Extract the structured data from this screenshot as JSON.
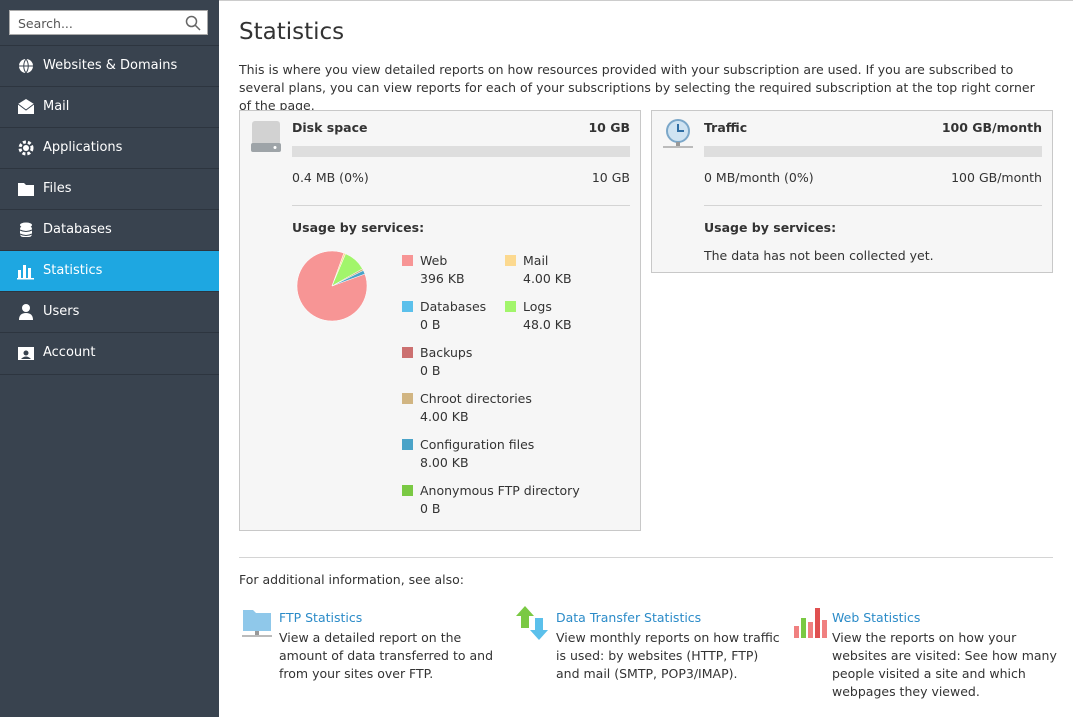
{
  "sidebar": {
    "search_placeholder": "Search...",
    "nav": [
      "Websites & Domains",
      "Mail",
      "Applications",
      "Files",
      "Databases",
      "Statistics",
      "Users",
      "Account"
    ]
  },
  "page": {
    "title": "Statistics",
    "description": "This is where you view detailed reports on how resources provided with your subscription are used. If you are subscribed to several plans, you can view reports for each of your subscriptions by selecting the required subscription at the top right corner of the page."
  },
  "disk": {
    "title": "Disk space",
    "total": "10 GB",
    "used": "0.4 MB (0%)",
    "limit": "10 GB",
    "usage_heading": "Usage by services:",
    "services": [
      {
        "name": "Web",
        "value": 396,
        "value_label": "396 KB",
        "color": "#f79595"
      },
      {
        "name": "Mail",
        "value": 4,
        "value_label": "4.00 KB",
        "color": "#fcd98f"
      },
      {
        "name": "Databases",
        "value": 0,
        "value_label": "0 B",
        "color": "#5bc0eb"
      },
      {
        "name": "Logs",
        "value": 48,
        "value_label": "48.0 KB",
        "color": "#a2f56b"
      },
      {
        "name": "Backups",
        "value": 0,
        "value_label": "0 B",
        "color": "#cc7070"
      },
      {
        "name": "Chroot directories",
        "value": 4,
        "value_label": "4.00 KB",
        "color": "#d1b582"
      },
      {
        "name": "Configuration files",
        "value": 8,
        "value_label": "8.00 KB",
        "color": "#4aa3c8"
      },
      {
        "name": "Anonymous FTP directory",
        "value": 0,
        "value_label": "0 B",
        "color": "#7ac943"
      }
    ]
  },
  "traffic": {
    "title": "Traffic",
    "total": "100 GB/month",
    "used": "0 MB/month (0%)",
    "limit": "100 GB/month",
    "usage_heading": "Usage by services:",
    "note": "The data has not been collected yet."
  },
  "see_also": {
    "heading": "For additional information, see also:",
    "links": [
      {
        "title": "FTP Statistics",
        "description": "View a detailed report on the amount of data transferred to and from your sites over FTP."
      },
      {
        "title": "Data Transfer Statistics",
        "description": "View monthly reports on how traffic is used: by websites (HTTP, FTP) and mail (SMTP, POP3/IMAP)."
      },
      {
        "title": "Web Statistics",
        "description": "View the reports on how your websites are visited: See how many people visited a site and which webpages they viewed."
      }
    ]
  }
}
